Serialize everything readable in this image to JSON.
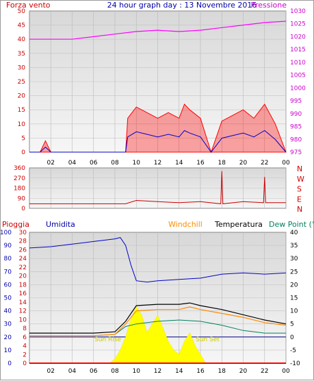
{
  "header": {
    "left_label": "Forza vento",
    "title": "24 hour graph day : 13 Novembre 2016",
    "right_label": "Pressione"
  },
  "colors": {
    "plot_bg_top": "#dcdcdc",
    "plot_bg_bottom": "#f4f4f4",
    "wind_speed": "#ff0000",
    "wind_avg": "#0000cc",
    "wind_green": "#008000",
    "pressure": "#ff00ff",
    "pressure_axis": "#cc00cc",
    "direction": "#cc0000",
    "rain": "#ff0000",
    "humidity": "#0000cc",
    "windchill": "#ff8c00",
    "temperature": "#000000",
    "dewpoint": "#008060",
    "solar": "#ffff00",
    "sun_label": "#cccc00"
  },
  "time_ticks": [
    "02",
    "04",
    "06",
    "08",
    "10",
    "12",
    "14",
    "16",
    "18",
    "20",
    "22",
    "00"
  ],
  "panel1": {
    "left_ticks": [
      "50",
      "45",
      "40",
      "35",
      "30",
      "25",
      "20",
      "15",
      "10",
      "5",
      "0"
    ],
    "right_ticks": [
      "1030",
      "1025",
      "1020",
      "1015",
      "1010",
      "1005",
      "1000",
      "995",
      "990",
      "985",
      "980",
      "975"
    ]
  },
  "panel2": {
    "left_ticks": [
      "360",
      "270",
      "180",
      "90",
      "0"
    ],
    "right_letters": [
      "N",
      "W",
      "S",
      "E",
      "N"
    ]
  },
  "panel3": {
    "labels": {
      "rain": "Pioggia",
      "humidity": "Umidita",
      "windchill": "Windchill",
      "temperature": "Temperatura",
      "dewpoint": "Dew Point (°C"
    },
    "humidity_ticks": [
      "100",
      "90",
      "80",
      "70",
      "60",
      "50",
      "40",
      "30",
      "20",
      "10",
      "0"
    ],
    "rain_ticks": [
      "30",
      "28",
      "26",
      "24",
      "22",
      "20",
      "18",
      "16",
      "14",
      "12",
      "10",
      "8",
      "6",
      "4",
      "2",
      "0"
    ],
    "temp_ticks": [
      "40",
      "35",
      "30",
      "25",
      "20",
      "15",
      "10",
      "5",
      "0",
      "-5",
      "-10"
    ],
    "sunrise_label": "Sun Rise",
    "sunset_label": "Sun Set"
  },
  "chart_data": [
    {
      "type": "line",
      "title": "24 hour graph day : 13 Novembre 2016",
      "x_unit": "hour",
      "series": [
        {
          "name": "Forza vento",
          "axis": "left",
          "ylim": [
            0,
            50
          ],
          "x": [
            0,
            1,
            1.5,
            2,
            3,
            4,
            5,
            6,
            7,
            8,
            9,
            9.2,
            10,
            11,
            12,
            13,
            14,
            14.5,
            15,
            16,
            17,
            18,
            19,
            20,
            21,
            22,
            23,
            24
          ],
          "y": [
            0,
            0,
            4,
            0,
            0,
            0,
            0,
            0,
            0,
            0,
            0,
            12,
            16,
            14,
            12,
            14,
            12,
            17,
            15,
            12,
            0,
            11,
            13,
            15,
            12,
            17,
            10,
            0
          ]
        },
        {
          "name": "Pressione",
          "axis": "right",
          "ylim": [
            975,
            1030
          ],
          "x": [
            0,
            2,
            4,
            6,
            8,
            10,
            12,
            14,
            16,
            18,
            20,
            22,
            24
          ],
          "y": [
            1019,
            1019,
            1019,
            1020,
            1021,
            1022,
            1022.5,
            1022,
            1022.5,
            1023.5,
            1024.5,
            1025.5,
            1026
          ]
        }
      ]
    },
    {
      "type": "line",
      "series": [
        {
          "name": "direction",
          "ylim": [
            0,
            360
          ],
          "x": [
            0,
            2,
            4,
            6,
            8,
            9,
            10,
            12,
            14,
            16,
            17.9,
            18,
            18.1,
            20,
            21.9,
            22,
            22.1,
            24
          ],
          "y": [
            40,
            40,
            40,
            40,
            40,
            40,
            70,
            60,
            50,
            60,
            40,
            330,
            40,
            60,
            50,
            280,
            50,
            50
          ]
        }
      ]
    },
    {
      "type": "line",
      "series": [
        {
          "name": "Umidita",
          "axis": "humidity",
          "ylim": [
            0,
            100
          ],
          "x": [
            0,
            2,
            4,
            6,
            8,
            8.5,
            9,
            9.5,
            10,
            11,
            12,
            14,
            16,
            18,
            20,
            22,
            24
          ],
          "y": [
            88,
            89,
            91,
            93,
            95,
            96,
            90,
            75,
            63,
            62,
            63,
            64,
            65,
            68,
            69,
            68,
            69
          ]
        },
        {
          "name": "Temperatura",
          "axis": "temp",
          "ylim": [
            -10,
            40
          ],
          "x": [
            0,
            2,
            4,
            6,
            8,
            9,
            10,
            12,
            14,
            15,
            16,
            18,
            20,
            22,
            24
          ],
          "y": [
            1.5,
            1.5,
            1.5,
            1.5,
            2,
            6,
            12,
            12.5,
            12.5,
            13,
            12,
            10.5,
            8.5,
            6.5,
            5
          ]
        },
        {
          "name": "Windchill",
          "axis": "temp",
          "ylim": [
            -10,
            40
          ],
          "x": [
            0,
            2,
            4,
            6,
            8,
            9,
            10,
            12,
            14,
            15,
            16,
            18,
            20,
            22,
            24
          ],
          "y": [
            0.5,
            0.5,
            0.5,
            0.5,
            1,
            5,
            10,
            10.5,
            10.5,
            11.5,
            10.5,
            9,
            7.5,
            5.5,
            4.5
          ]
        },
        {
          "name": "Dew Point",
          "axis": "temp",
          "ylim": [
            -10,
            40
          ],
          "x": [
            0,
            2,
            4,
            6,
            8,
            9,
            10,
            12,
            14,
            16,
            18,
            20,
            22,
            24
          ],
          "y": [
            0.5,
            0.5,
            0.5,
            0.5,
            1,
            4,
            5,
            6,
            6.5,
            6,
            4.5,
            2.5,
            1.5,
            1.5
          ]
        },
        {
          "name": "Pioggia",
          "axis": "rain",
          "ylim": [
            0,
            30
          ],
          "x": [
            0,
            24
          ],
          "y": [
            0,
            0
          ]
        },
        {
          "name": "solar",
          "axis": "rain",
          "ylim": [
            0,
            30
          ],
          "x": [
            7.5,
            8,
            8.5,
            9,
            9.5,
            10,
            10.5,
            11,
            11.5,
            12,
            12.5,
            13,
            13.5,
            14,
            14.5,
            15,
            15.5,
            16,
            16.5
          ],
          "y": [
            0,
            1,
            3,
            6,
            10,
            13,
            11,
            7,
            9,
            11,
            8,
            5,
            3,
            2,
            5,
            7,
            4,
            2,
            0
          ]
        }
      ]
    }
  ]
}
